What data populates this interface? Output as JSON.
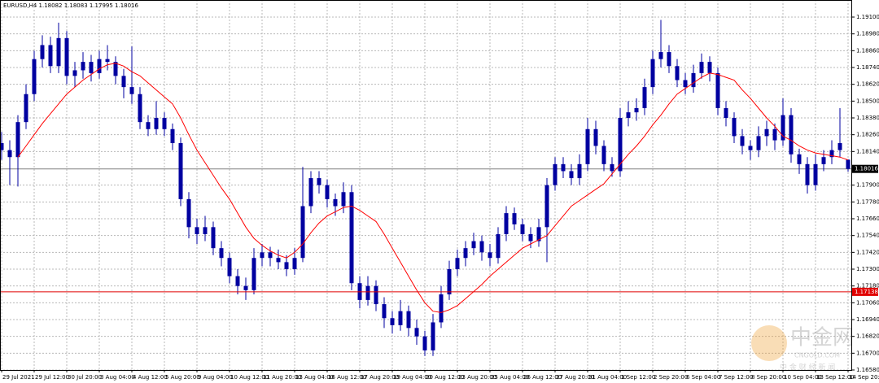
{
  "chart_data": {
    "type": "candlestick",
    "title": "EURUSD,H4  1.18082 1.18083 1.17995 1.18016",
    "categories": [
      "29 Jul 2021",
      "29 Jul 12:00",
      "30 Jul 20:00",
      "3 Aug 04:00",
      "4 Aug 12:00",
      "5 Aug 20:00",
      "9 Aug 04:00",
      "10 Aug 12:00",
      "11 Aug 20:00",
      "13 Aug 04:00",
      "16 Aug 12:00",
      "17 Aug 20:00",
      "19 Aug 04:00",
      "20 Aug 12:00",
      "23 Aug 20:00",
      "25 Aug 04:00",
      "26 Aug 12:00",
      "27 Aug 20:00",
      "31 Aug 04:00",
      "1 Sep 12:00",
      "2 Sep 20:00",
      "6 Sep 04:00",
      "7 Sep 12:00",
      "8 Sep 20:00",
      "10 Sep 04:00",
      "13 Sep 12:00",
      "14 Sep 20:00"
    ],
    "open": [
      1.182,
      1.1815,
      1.181,
      1.1835,
      1.1855,
      1.188,
      1.189,
      1.1875,
      1.1895,
      1.1868,
      1.1872,
      1.1878,
      1.187,
      1.188,
      1.1878,
      1.1868,
      1.186,
      1.1855,
      1.1835,
      1.183,
      1.1838,
      1.183,
      1.182,
      1.178,
      1.176,
      1.1755,
      1.176,
      1.1745,
      1.1738,
      1.1725,
      1.1718,
      1.1715,
      1.1738,
      1.1742,
      1.1738,
      1.1735,
      1.173,
      1.1738,
      1.1775,
      1.1795,
      1.179,
      1.178,
      1.1775,
      1.1785,
      1.172,
      1.1708,
      1.1718,
      1.1705,
      1.1695,
      1.169,
      1.17,
      1.1688,
      1.1682,
      1.1672,
      1.1692,
      1.1712,
      1.173,
      1.1738,
      1.1745,
      1.175,
      1.1742,
      1.1738,
      1.1755,
      1.177,
      1.1762,
      1.1755,
      1.175,
      1.176,
      1.179,
      1.1805,
      1.18,
      1.1795,
      1.1805,
      1.183,
      1.1818,
      1.1805,
      1.18,
      1.1838,
      1.1842,
      1.1845,
      1.186,
      1.188,
      1.1885,
      1.1875,
      1.1865,
      1.186,
      1.187,
      1.1878,
      1.187,
      1.1845,
      1.1838,
      1.1825,
      1.1818,
      1.1815,
      1.1825,
      1.183,
      1.1822,
      1.184,
      1.1812,
      1.1805,
      1.179,
      1.1805,
      1.181,
      1.1815,
      1.18082
    ],
    "high": [
      1.1828,
      1.1822,
      1.184,
      1.1862,
      1.1886,
      1.1897,
      1.1896,
      1.1906,
      1.19,
      1.1878,
      1.1885,
      1.1883,
      1.1886,
      1.189,
      1.1882,
      1.1873,
      1.1889,
      1.186,
      1.184,
      1.185,
      1.1842,
      1.1834,
      1.1824,
      1.1785,
      1.1766,
      1.1768,
      1.1764,
      1.175,
      1.1742,
      1.173,
      1.1724,
      1.1745,
      1.1748,
      1.1746,
      1.1744,
      1.174,
      1.1745,
      1.1803,
      1.18,
      1.18,
      1.1794,
      1.1784,
      1.1792,
      1.179,
      1.1725,
      1.1725,
      1.1722,
      1.171,
      1.17,
      1.1708,
      1.1704,
      1.1694,
      1.1686,
      1.1698,
      1.1718,
      1.1736,
      1.1744,
      1.175,
      1.1756,
      1.1754,
      1.1748,
      1.176,
      1.1775,
      1.1774,
      1.1766,
      1.176,
      1.1766,
      1.1795,
      1.181,
      1.181,
      1.1805,
      1.1812,
      1.1838,
      1.1836,
      1.1822,
      1.181,
      1.1845,
      1.185,
      1.1852,
      1.1866,
      1.1886,
      1.1908,
      1.189,
      1.188,
      1.187,
      1.1876,
      1.1884,
      1.1882,
      1.1874,
      1.185,
      1.1842,
      1.183,
      1.1822,
      1.1832,
      1.1836,
      1.1834,
      1.1852,
      1.1845,
      1.1816,
      1.181,
      1.1812,
      1.1815,
      1.1822,
      1.1845,
      1.18083
    ],
    "low": [
      1.1808,
      1.179,
      1.1789,
      1.183,
      1.185,
      1.1874,
      1.187,
      1.187,
      1.1862,
      1.186,
      1.1866,
      1.1864,
      1.1866,
      1.1872,
      1.1862,
      1.1852,
      1.1848,
      1.183,
      1.1825,
      1.1826,
      1.1825,
      1.1815,
      1.1775,
      1.1752,
      1.1748,
      1.175,
      1.174,
      1.1732,
      1.172,
      1.1712,
      1.1708,
      1.1712,
      1.1732,
      1.1732,
      1.173,
      1.1725,
      1.1726,
      1.1735,
      1.177,
      1.1784,
      1.1774,
      1.1768,
      1.177,
      1.1715,
      1.1702,
      1.1704,
      1.17,
      1.1688,
      1.1684,
      1.1686,
      1.1682,
      1.1676,
      1.1668,
      1.1668,
      1.1688,
      1.1708,
      1.1725,
      1.1732,
      1.174,
      1.1736,
      1.1732,
      1.1734,
      1.175,
      1.1758,
      1.175,
      1.1745,
      1.1746,
      1.1735,
      1.1786,
      1.1795,
      1.179,
      1.179,
      1.18,
      1.1812,
      1.18,
      1.1796,
      1.1796,
      1.1832,
      1.1836,
      1.184,
      1.1855,
      1.1874,
      1.187,
      1.186,
      1.1855,
      1.1856,
      1.1866,
      1.1864,
      1.184,
      1.1832,
      1.182,
      1.1812,
      1.1808,
      1.181,
      1.1818,
      1.1815,
      1.1818,
      1.1806,
      1.1798,
      1.1784,
      1.1786,
      1.18,
      1.1805,
      1.181,
      1.17995
    ],
    "close": [
      1.1815,
      1.181,
      1.1835,
      1.1855,
      1.188,
      1.189,
      1.1875,
      1.1895,
      1.1868,
      1.1872,
      1.1878,
      1.187,
      1.188,
      1.1878,
      1.1868,
      1.186,
      1.1855,
      1.1835,
      1.183,
      1.1838,
      1.183,
      1.182,
      1.178,
      1.176,
      1.1755,
      1.176,
      1.1745,
      1.1738,
      1.1725,
      1.1718,
      1.1715,
      1.1738,
      1.1742,
      1.1738,
      1.1735,
      1.173,
      1.1738,
      1.1775,
      1.1795,
      1.179,
      1.178,
      1.1775,
      1.1785,
      1.172,
      1.1708,
      1.1718,
      1.1705,
      1.1695,
      1.169,
      1.17,
      1.1688,
      1.1682,
      1.1672,
      1.1692,
      1.1712,
      1.173,
      1.1738,
      1.1745,
      1.175,
      1.1742,
      1.1738,
      1.1755,
      1.177,
      1.1762,
      1.1755,
      1.175,
      1.176,
      1.179,
      1.1805,
      1.18,
      1.1795,
      1.1805,
      1.183,
      1.1818,
      1.1805,
      1.18,
      1.1838,
      1.1842,
      1.1845,
      1.186,
      1.188,
      1.1885,
      1.1875,
      1.1865,
      1.186,
      1.187,
      1.1878,
      1.187,
      1.1845,
      1.1838,
      1.1825,
      1.1818,
      1.1815,
      1.1825,
      1.183,
      1.1822,
      1.184,
      1.1812,
      1.1805,
      1.179,
      1.1805,
      1.181,
      1.1815,
      1.182,
      1.18016
    ],
    "candle_color": "#0000a0",
    "ma": {
      "color": "#ff0000",
      "values": [
        null,
        null,
        1.181,
        1.1818,
        1.1826,
        1.1834,
        1.1841,
        1.1848,
        1.1855,
        1.186,
        1.1865,
        1.1869,
        1.1873,
        1.1876,
        1.1877,
        1.1875,
        1.1871,
        1.1868,
        1.1863,
        1.1858,
        1.1853,
        1.1848,
        1.1838,
        1.1826,
        1.1815,
        1.1806,
        1.1797,
        1.1788,
        1.178,
        1.177,
        1.176,
        1.1752,
        1.1747,
        1.1743,
        1.174,
        1.1738,
        1.1742,
        1.1748,
        1.1756,
        1.1763,
        1.1768,
        1.1771,
        1.1774,
        1.1775,
        1.1772,
        1.1768,
        1.1764,
        1.1755,
        1.1745,
        1.1735,
        1.1725,
        1.1715,
        1.1706,
        1.17,
        1.1699,
        1.1701,
        1.1704,
        1.1709,
        1.1714,
        1.1719,
        1.1725,
        1.173,
        1.1735,
        1.174,
        1.1745,
        1.1748,
        1.1751,
        1.1754,
        1.1761,
        1.1768,
        1.1775,
        1.1779,
        1.1783,
        1.1787,
        1.1791,
        1.1798,
        1.1805,
        1.1812,
        1.1818,
        1.1825,
        1.1833,
        1.184,
        1.1848,
        1.1855,
        1.1859,
        1.1863,
        1.1867,
        1.187,
        1.1869,
        1.1867,
        1.1865,
        1.1858,
        1.1852,
        1.1845,
        1.1838,
        1.1832,
        1.1825,
        1.1822,
        1.1818,
        1.1815,
        1.1813,
        1.1812,
        1.1811,
        1.181,
        1.1808
      ]
    },
    "ylim": [
      1.1658,
      1.19222
    ],
    "yticks": [
      {
        "value": 1.191,
        "label": "1.19100"
      },
      {
        "value": 1.1898,
        "label": "1.18980"
      },
      {
        "value": 1.1886,
        "label": "1.18860"
      },
      {
        "value": 1.1874,
        "label": "1.18740"
      },
      {
        "value": 1.1862,
        "label": "1.18620"
      },
      {
        "value": 1.185,
        "label": "1.18500"
      },
      {
        "value": 1.1838,
        "label": "1.18380"
      },
      {
        "value": 1.1826,
        "label": "1.18260"
      },
      {
        "value": 1.1814,
        "label": "1.18140"
      },
      {
        "value": 1.179,
        "label": "1.17900"
      },
      {
        "value": 1.1778,
        "label": "1.17780"
      },
      {
        "value": 1.1766,
        "label": "1.17660"
      },
      {
        "value": 1.1754,
        "label": "1.17540"
      },
      {
        "value": 1.1742,
        "label": "1.17420"
      },
      {
        "value": 1.173,
        "label": "1.17300"
      },
      {
        "value": 1.1718,
        "label": "1.17180"
      },
      {
        "value": 1.1706,
        "label": "1.17060"
      },
      {
        "value": 1.1694,
        "label": "1.16940"
      },
      {
        "value": 1.1682,
        "label": "1.16820"
      },
      {
        "value": 1.167,
        "label": "1.16700"
      },
      {
        "value": 1.1658,
        "label": "1.16580"
      }
    ],
    "grid": true,
    "level_line": {
      "value": 1.17138,
      "label": "1.17138",
      "color": "#e00000"
    },
    "price_line": {
      "value": 1.18016,
      "label": "1.18016",
      "color": "#808080"
    },
    "watermark": {
      "name": "中金网",
      "site": "CNGOLD.COM",
      "slogan": "中 金 财 经 新 闻"
    }
  }
}
